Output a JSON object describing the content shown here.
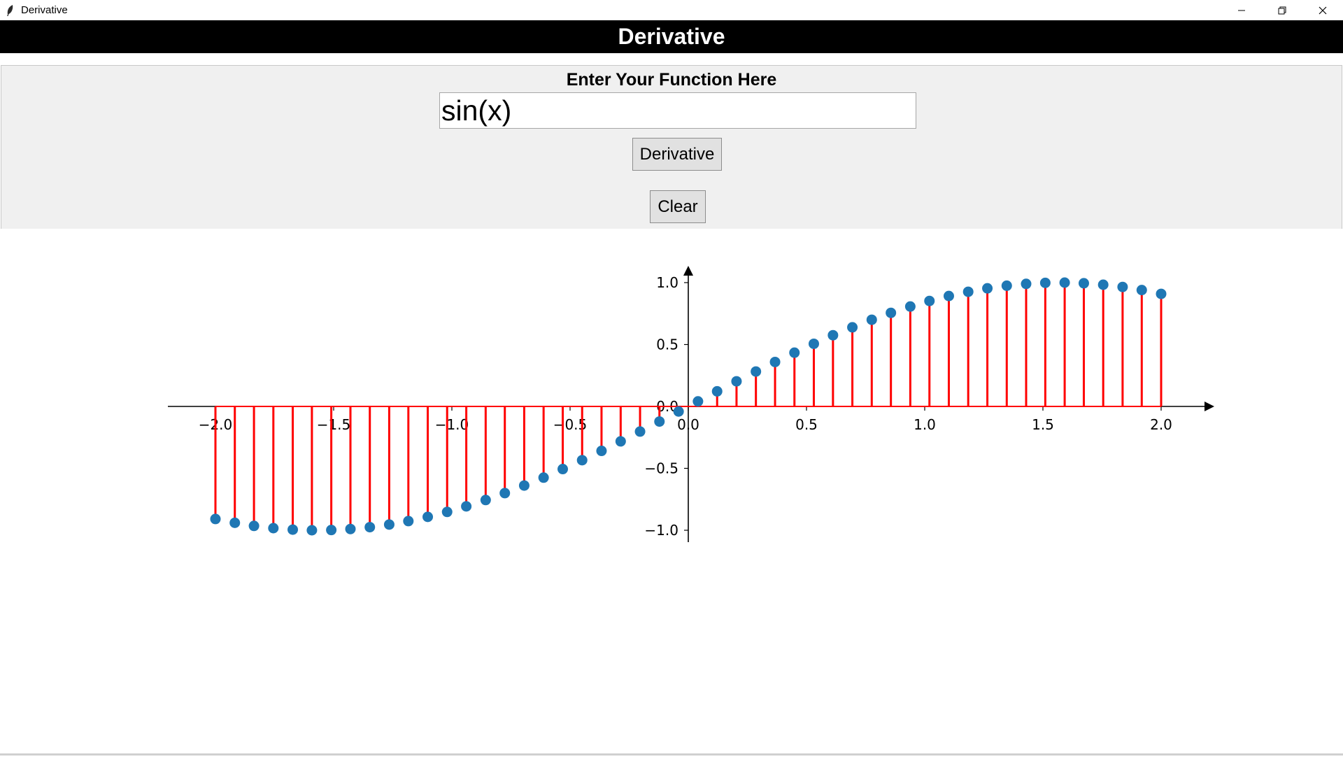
{
  "window": {
    "title": "Derivative",
    "controls": [
      "minimize-icon",
      "restore-icon",
      "close-icon"
    ]
  },
  "banner": {
    "title": "Derivative"
  },
  "form": {
    "prompt": "Enter Your Function Here",
    "function_value": "sin(x)",
    "derivative_button": "Derivative",
    "clear_button": "Clear"
  },
  "colors": {
    "banner_bg": "#000000",
    "panel_bg": "#f0f0f0",
    "stem": "#ff0000",
    "marker": "#1f77b4",
    "axis": "#000000"
  },
  "chart_data": {
    "type": "stem",
    "title": "",
    "xlabel": "",
    "ylabel": "",
    "xlim": [
      -2.2,
      2.2
    ],
    "ylim": [
      -1.1,
      1.05
    ],
    "xticks": [
      -2.0,
      -1.5,
      -1.0,
      -0.5,
      0.0,
      0.5,
      1.0,
      1.5,
      2.0
    ],
    "xtick_labels": [
      "−2.0",
      "−1.5",
      "−1.0",
      "−0.5",
      "0.0",
      "0.5",
      "1.0",
      "1.5",
      "2.0"
    ],
    "yticks": [
      -1.0,
      -0.5,
      0.0,
      0.5,
      1.0
    ],
    "ytick_labels": [
      "−1.0",
      "−0.5",
      "0.0",
      "0.5",
      "1.0"
    ],
    "grid": false,
    "series": [
      {
        "x": [
          -2.0,
          -1.918,
          -1.837,
          -1.755,
          -1.673,
          -1.592,
          -1.51,
          -1.429,
          -1.347,
          -1.265,
          -1.184,
          -1.102,
          -1.02,
          -0.939,
          -0.857,
          -0.776,
          -0.694,
          -0.612,
          -0.531,
          -0.449,
          -0.367,
          -0.286,
          -0.204,
          -0.122,
          -0.041,
          0.041,
          0.122,
          0.204,
          0.286,
          0.367,
          0.449,
          0.531,
          0.612,
          0.694,
          0.776,
          0.857,
          0.939,
          1.02,
          1.102,
          1.184,
          1.265,
          1.347,
          1.429,
          1.51,
          1.592,
          1.673,
          1.755,
          1.837,
          1.918,
          2.0
        ],
        "y": [
          -0.909,
          -0.94,
          -0.965,
          -0.983,
          -0.995,
          -1.0,
          -0.998,
          -0.99,
          -0.975,
          -0.954,
          -0.926,
          -0.892,
          -0.852,
          -0.807,
          -0.756,
          -0.7,
          -0.639,
          -0.575,
          -0.506,
          -0.434,
          -0.359,
          -0.282,
          -0.203,
          -0.122,
          -0.041,
          0.041,
          0.122,
          0.203,
          0.282,
          0.359,
          0.434,
          0.506,
          0.575,
          0.639,
          0.7,
          0.756,
          0.807,
          0.852,
          0.892,
          0.926,
          0.954,
          0.975,
          0.99,
          0.998,
          1.0,
          0.995,
          0.983,
          0.965,
          0.94,
          0.909
        ]
      }
    ]
  }
}
